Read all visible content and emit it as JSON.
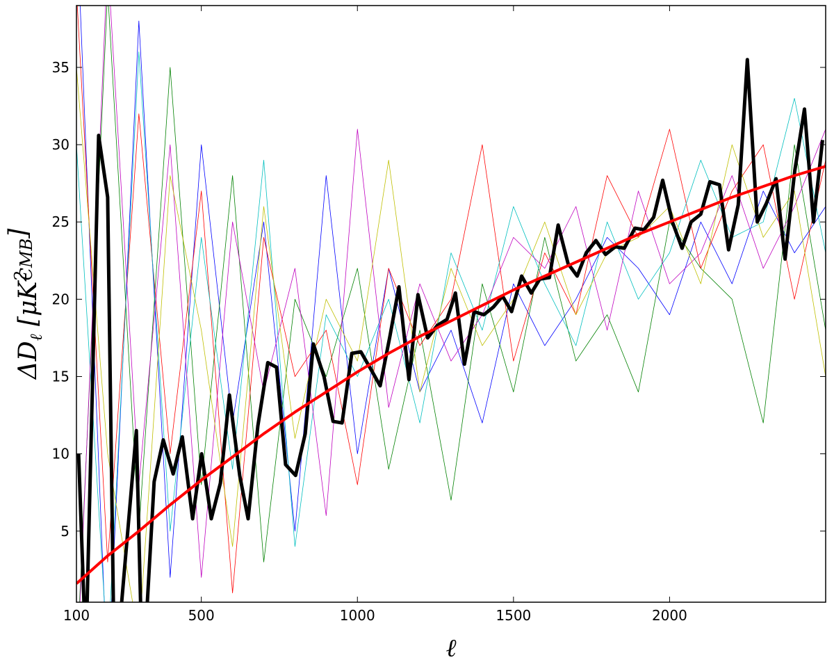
{
  "chart_data": {
    "type": "line",
    "xlabel": "ℓ",
    "ylabel": [
      "ΔD",
      "ℓ",
      " [μK",
      "2",
      "CMB",
      "]"
    ],
    "xlim": [
      100,
      2500
    ],
    "ylim": [
      0.4,
      39
    ],
    "xticks": [
      100,
      500,
      1000,
      1500,
      2000
    ],
    "yticks": [
      5,
      10,
      15,
      20,
      25,
      30,
      35
    ],
    "series": [
      {
        "color": "#0000ff",
        "linewidth": 0.8,
        "x": [
          100,
          200,
          300,
          400,
          500,
          600,
          700,
          800,
          900,
          1000,
          1100,
          1200,
          1300,
          1400,
          1500,
          1600,
          1700,
          1800,
          1900,
          2000,
          2100,
          2200,
          2300,
          2400,
          2500
        ],
        "values": [
          45,
          -5,
          38,
          2,
          30,
          12,
          25,
          5,
          28,
          10,
          22,
          14,
          18,
          12,
          21,
          17,
          20,
          24,
          22,
          19,
          25,
          21,
          27,
          23,
          26
        ]
      },
      {
        "color": "#008000",
        "linewidth": 0.8,
        "x": [
          100,
          200,
          300,
          400,
          500,
          600,
          700,
          800,
          900,
          1000,
          1100,
          1200,
          1300,
          1400,
          1500,
          1600,
          1700,
          1800,
          1900,
          2000,
          2100,
          2200,
          2300,
          2400,
          2500
        ],
        "values": [
          -4,
          40,
          5,
          35,
          8,
          28,
          3,
          20,
          15,
          22,
          9,
          18,
          7,
          21,
          14,
          24,
          16,
          19,
          14,
          25,
          22,
          20,
          12,
          30,
          18
        ]
      },
      {
        "color": "#ff0000",
        "linewidth": 0.8,
        "x": [
          100,
          200,
          300,
          400,
          500,
          600,
          700,
          800,
          900,
          1000,
          1100,
          1200,
          1300,
          1400,
          1500,
          1600,
          1700,
          1800,
          1900,
          2000,
          2100,
          2200,
          2300,
          2400,
          2500
        ],
        "values": [
          40,
          3,
          32,
          10,
          27,
          1,
          24,
          15,
          18,
          8,
          22,
          17,
          20,
          30,
          16,
          23,
          19,
          28,
          24,
          31,
          22,
          27,
          30,
          20,
          29
        ]
      },
      {
        "color": "#00bfbf",
        "linewidth": 0.8,
        "x": [
          100,
          200,
          300,
          400,
          500,
          600,
          700,
          800,
          900,
          1000,
          1100,
          1200,
          1300,
          1400,
          1500,
          1600,
          1700,
          1800,
          1900,
          2000,
          2100,
          2200,
          2300,
          2400,
          2500
        ],
        "values": [
          30,
          -3,
          36,
          5,
          24,
          9,
          29,
          4,
          19,
          15,
          20,
          12,
          23,
          18,
          26,
          21,
          17,
          25,
          20,
          23,
          29,
          24,
          25,
          33,
          23
        ]
      },
      {
        "color": "#bf00bf",
        "linewidth": 0.8,
        "x": [
          100,
          200,
          300,
          400,
          500,
          600,
          700,
          800,
          900,
          1000,
          1100,
          1200,
          1300,
          1400,
          1500,
          1600,
          1700,
          1800,
          1900,
          2000,
          2100,
          2200,
          2300,
          2400,
          2500
        ],
        "values": [
          -5,
          42,
          8,
          30,
          2,
          25,
          14,
          22,
          6,
          31,
          13,
          21,
          16,
          19,
          24,
          22,
          26,
          18,
          27,
          21,
          23,
          28,
          22,
          26,
          31
        ]
      },
      {
        "color": "#bfbf00",
        "linewidth": 0.8,
        "x": [
          100,
          200,
          300,
          400,
          500,
          600,
          700,
          800,
          900,
          1000,
          1100,
          1200,
          1300,
          1400,
          1500,
          1600,
          1700,
          1800,
          1900,
          2000,
          2100,
          2200,
          2300,
          2400,
          2500
        ],
        "values": [
          35,
          10,
          -2,
          28,
          18,
          4,
          26,
          11,
          20,
          16,
          29,
          14,
          22,
          17,
          20,
          25,
          19,
          23,
          24,
          26,
          21,
          30,
          24,
          27,
          15
        ]
      },
      {
        "color": "#000000",
        "linewidth": 5,
        "x": [
          107,
          130,
          171,
          200,
          222,
          292,
          312,
          349,
          378,
          410,
          439,
          472,
          501,
          532,
          561,
          590,
          623,
          650,
          681,
          713,
          741,
          770,
          802,
          833,
          859,
          893,
          922,
          951,
          982,
          1011,
          1045,
          1073,
          1104,
          1133,
          1165,
          1194,
          1225,
          1256,
          1287,
          1314,
          1343,
          1374,
          1405,
          1436,
          1465,
          1494,
          1526,
          1557,
          1584,
          1615,
          1643,
          1675,
          1704,
          1733,
          1764,
          1795,
          1826,
          1855,
          1889,
          1918,
          1949,
          1978,
          2009,
          2040,
          2069,
          2100,
          2129,
          2160,
          2189,
          2220,
          2249,
          2281,
          2310,
          2341,
          2370,
          2401,
          2432,
          2461,
          2490
        ],
        "values": [
          10,
          -3,
          30.6,
          26.6,
          -5,
          11.5,
          -5,
          8.2,
          10.9,
          8.7,
          11.1,
          5.8,
          10,
          5.8,
          8.1,
          13.8,
          8.6,
          5.8,
          11.8,
          15.9,
          15.6,
          9.3,
          8.6,
          11.3,
          17.1,
          15,
          12.1,
          12,
          16.5,
          16.6,
          15.4,
          14.4,
          17.6,
          20.8,
          14.8,
          20.3,
          17.5,
          18.3,
          18.7,
          20.4,
          15.8,
          19.2,
          19,
          19.5,
          20.2,
          19.2,
          21.5,
          20.4,
          21.3,
          21.4,
          24.8,
          22.3,
          21.5,
          23,
          23.8,
          22.9,
          23.4,
          23.3,
          24.6,
          24.5,
          25.3,
          27.7,
          25,
          23.3,
          25,
          25.5,
          27.6,
          27.4,
          23.2,
          26.1,
          35.5,
          25,
          26.2,
          27.8,
          22.6,
          28.3,
          32.3,
          25,
          30.3
        ]
      },
      {
        "color": "#ff0000",
        "linewidth": 4,
        "x": [
          100,
          200,
          300,
          400,
          500,
          600,
          700,
          800,
          900,
          1000,
          1100,
          1200,
          1300,
          1400,
          1500,
          1600,
          1700,
          1800,
          1900,
          2000,
          2100,
          2200,
          2300,
          2400,
          2500
        ],
        "values": [
          1.6,
          3.4,
          5,
          6.7,
          8.3,
          9.8,
          11.3,
          12.7,
          14,
          15.3,
          16.5,
          17.6,
          18.6,
          19.6,
          20.6,
          21.5,
          22.4,
          23.3,
          24.2,
          25,
          25.8,
          26.6,
          27.3,
          28,
          28.6
        ]
      }
    ]
  }
}
